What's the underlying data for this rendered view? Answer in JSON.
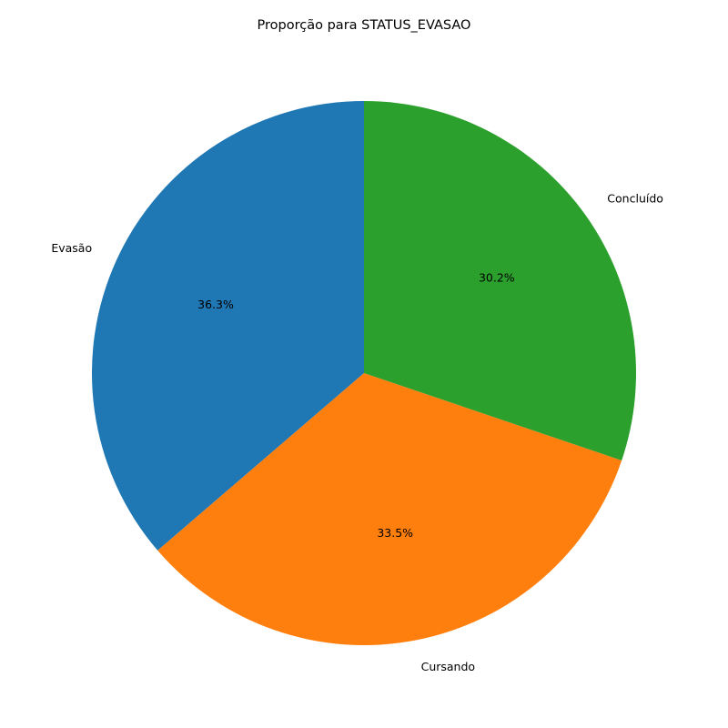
{
  "chart_data": {
    "type": "pie",
    "title": "Proporção para STATUS_EVASAO",
    "start_angle_deg": 90,
    "direction": "counterclockwise",
    "slices": [
      {
        "label": "Evasão",
        "value": 36.3,
        "pct_label": "36.3%",
        "color": "#1f77b4"
      },
      {
        "label": "Cursando",
        "value": 33.5,
        "pct_label": "33.5%",
        "color": "#ff7f0e"
      },
      {
        "label": "Concluído",
        "value": 30.2,
        "pct_label": "30.2%",
        "color": "#2ca02c"
      }
    ]
  }
}
